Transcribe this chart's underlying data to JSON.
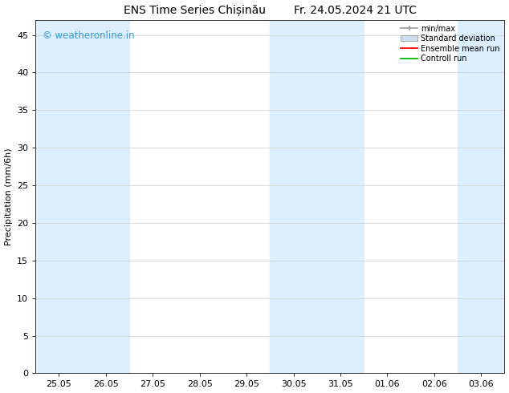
{
  "title": "ENS Time Series Chișinău        Fr. 24.05.2024 21 UTC",
  "ylabel": "Precipitation (mm/6h)",
  "xlabel": "",
  "ylim": [
    0,
    47
  ],
  "yticks": [
    0,
    5,
    10,
    15,
    20,
    25,
    30,
    35,
    40,
    45
  ],
  "xtick_labels": [
    "25.05",
    "26.05",
    "27.05",
    "28.05",
    "29.05",
    "30.05",
    "31.05",
    "01.06",
    "02.06",
    "03.06"
  ],
  "background_color": "#ffffff",
  "plot_bg_color": "#ffffff",
  "watermark": "© weatheronline.in",
  "watermark_color": "#3399cc",
  "legend_entries": [
    "min/max",
    "Standard deviation",
    "Ensemble mean run",
    "Controll run"
  ],
  "legend_colors": [
    "#999999",
    "#ccddf0",
    "#ff0000",
    "#00bb00"
  ],
  "shade_color": "#ddeeff",
  "shade_band_indices": [
    0,
    1,
    5,
    6,
    9
  ],
  "n_xpoints": 10,
  "title_fontsize": 10,
  "axis_fontsize": 8,
  "tick_fontsize": 8,
  "figwidth": 6.34,
  "figheight": 4.9,
  "dpi": 100
}
